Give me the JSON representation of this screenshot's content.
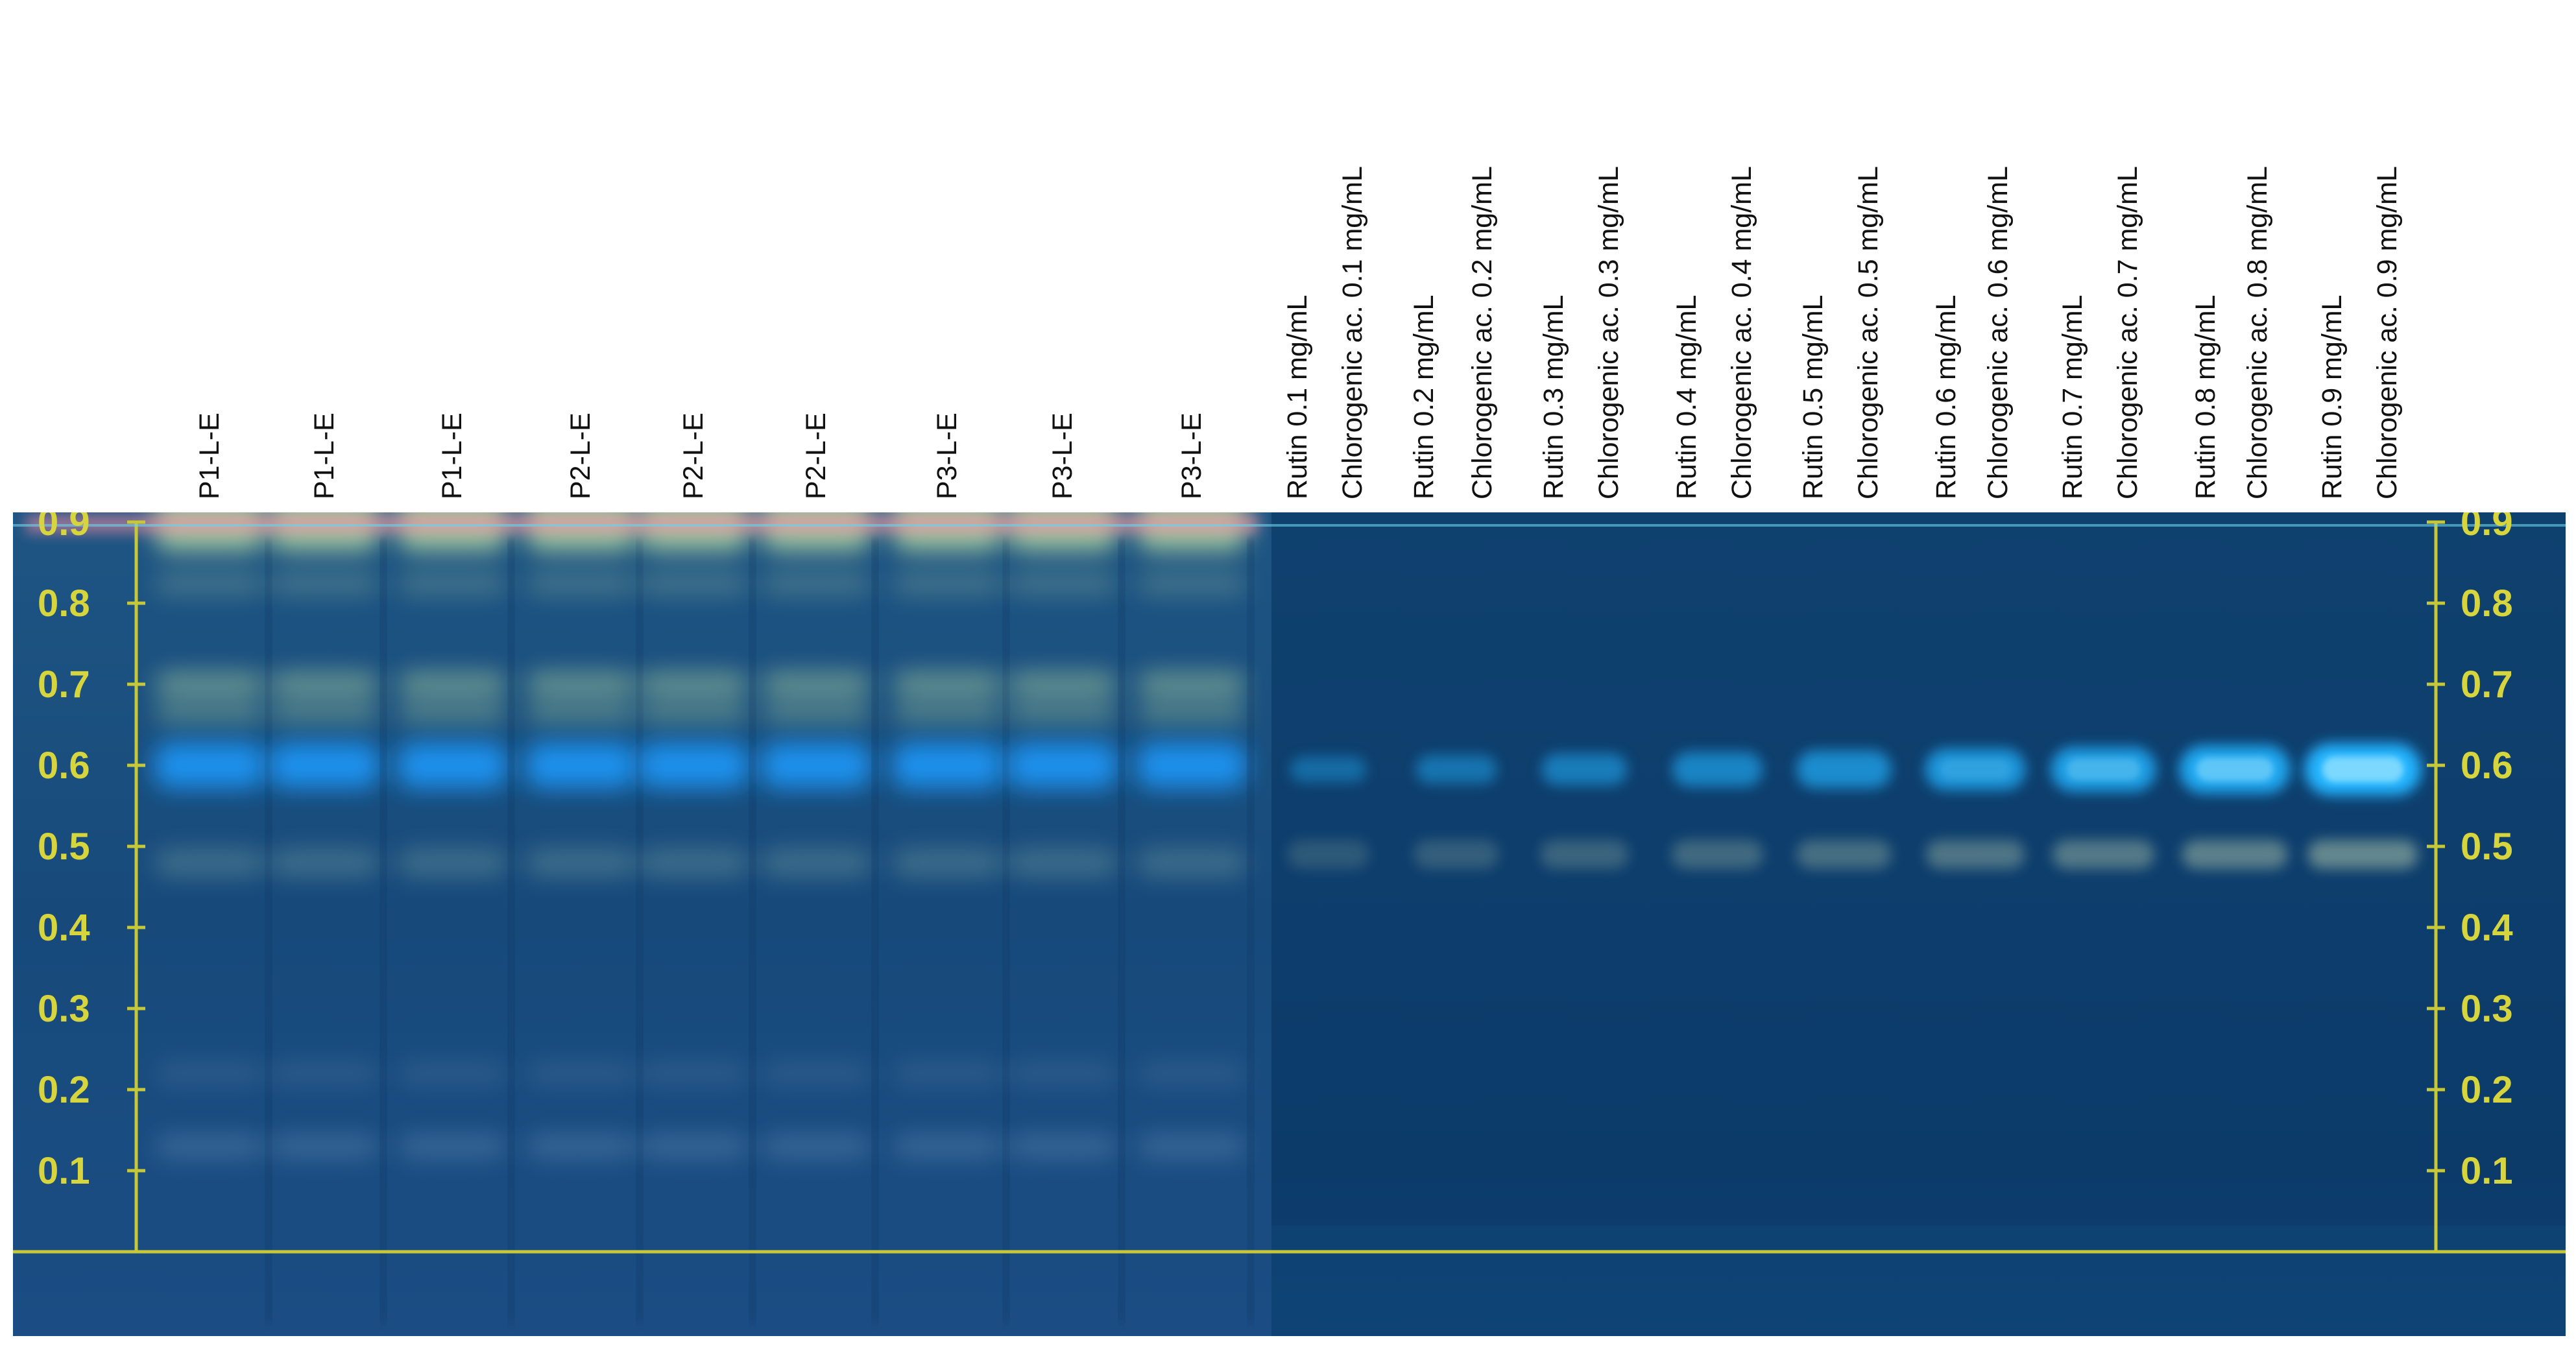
{
  "sample_lanes": [
    {
      "label": "P1-L-E"
    },
    {
      "label": "P1-L-E"
    },
    {
      "label": "P1-L-E"
    },
    {
      "label": "P2-L-E"
    },
    {
      "label": "P2-L-E"
    },
    {
      "label": "P2-L-E"
    },
    {
      "label": "P3-L-E"
    },
    {
      "label": "P3-L-E"
    },
    {
      "label": "P3-L-E"
    }
  ],
  "standard_lanes": [
    {
      "rutin_label": "Rutin 0.1 mg/mL",
      "chlorogenic_label": "Chlorogenic ac. 0.1 mg/mL",
      "intensity": 0.12
    },
    {
      "rutin_label": "Rutin 0.2 mg/mL",
      "chlorogenic_label": "Chlorogenic ac. 0.2 mg/mL",
      "intensity": 0.22
    },
    {
      "rutin_label": "Rutin 0.3 mg/mL",
      "chlorogenic_label": "Chlorogenic ac. 0.3 mg/mL",
      "intensity": 0.32
    },
    {
      "rutin_label": "Rutin 0.4 mg/mL",
      "chlorogenic_label": "Chlorogenic ac. 0.4 mg/mL",
      "intensity": 0.42
    },
    {
      "rutin_label": "Rutin 0.5 mg/mL",
      "chlorogenic_label": "Chlorogenic ac. 0.5 mg/mL",
      "intensity": 0.52
    },
    {
      "rutin_label": "Rutin 0.6 mg/mL",
      "chlorogenic_label": "Chlorogenic ac. 0.6 mg/mL",
      "intensity": 0.64
    },
    {
      "rutin_label": "Rutin 0.7 mg/mL",
      "chlorogenic_label": "Chlorogenic ac. 0.7 mg/mL",
      "intensity": 0.74
    },
    {
      "rutin_label": "Rutin 0.8 mg/mL",
      "chlorogenic_label": "Chlorogenic ac. 0.8 mg/mL",
      "intensity": 0.86
    },
    {
      "rutin_label": "Rutin 0.9 mg/mL",
      "chlorogenic_label": "Chlorogenic ac. 0.9 mg/mL",
      "intensity": 1.0
    }
  ],
  "rf_scale": {
    "ticks": [
      "0.9",
      "0.8",
      "0.7",
      "0.6",
      "0.5",
      "0.4",
      "0.3",
      "0.2",
      "0.1"
    ],
    "values": [
      0.9,
      0.8,
      0.7,
      0.6,
      0.5,
      0.4,
      0.3,
      0.2,
      0.1
    ]
  },
  "bands": {
    "sample": [
      {
        "rf": 0.9,
        "color": "#c9e8a6",
        "opacity": 0.72
      },
      {
        "rf": 0.825,
        "color": "#a8cfa3",
        "opacity": 0.25
      },
      {
        "rf": 0.7,
        "color": "#b8dea2",
        "opacity": 0.45
      },
      {
        "rf": 0.665,
        "color": "#a7d0a0",
        "opacity": 0.35
      },
      {
        "rf": 0.6,
        "color": "#1a9cff",
        "opacity": 0.85
      },
      {
        "rf": 0.48,
        "color": "#8fb3a7",
        "opacity": 0.35
      },
      {
        "rf": 0.22,
        "color": "#6b8fb8",
        "opacity": 0.22
      },
      {
        "rf": 0.13,
        "color": "#7aa0c8",
        "opacity": 0.3
      }
    ],
    "standard": [
      {
        "rf": 0.595,
        "color": "#22b4ff"
      },
      {
        "rf": 0.49,
        "color": "#8aa89d"
      }
    ]
  },
  "colors": {
    "plate_dark": "#0b3a68",
    "plate_sample": "#184c7c",
    "frame": "#c7c837",
    "tick_text": "#d7d53d",
    "top_glow": "#ff8fa6",
    "blue_band": "#22b4ff"
  }
}
